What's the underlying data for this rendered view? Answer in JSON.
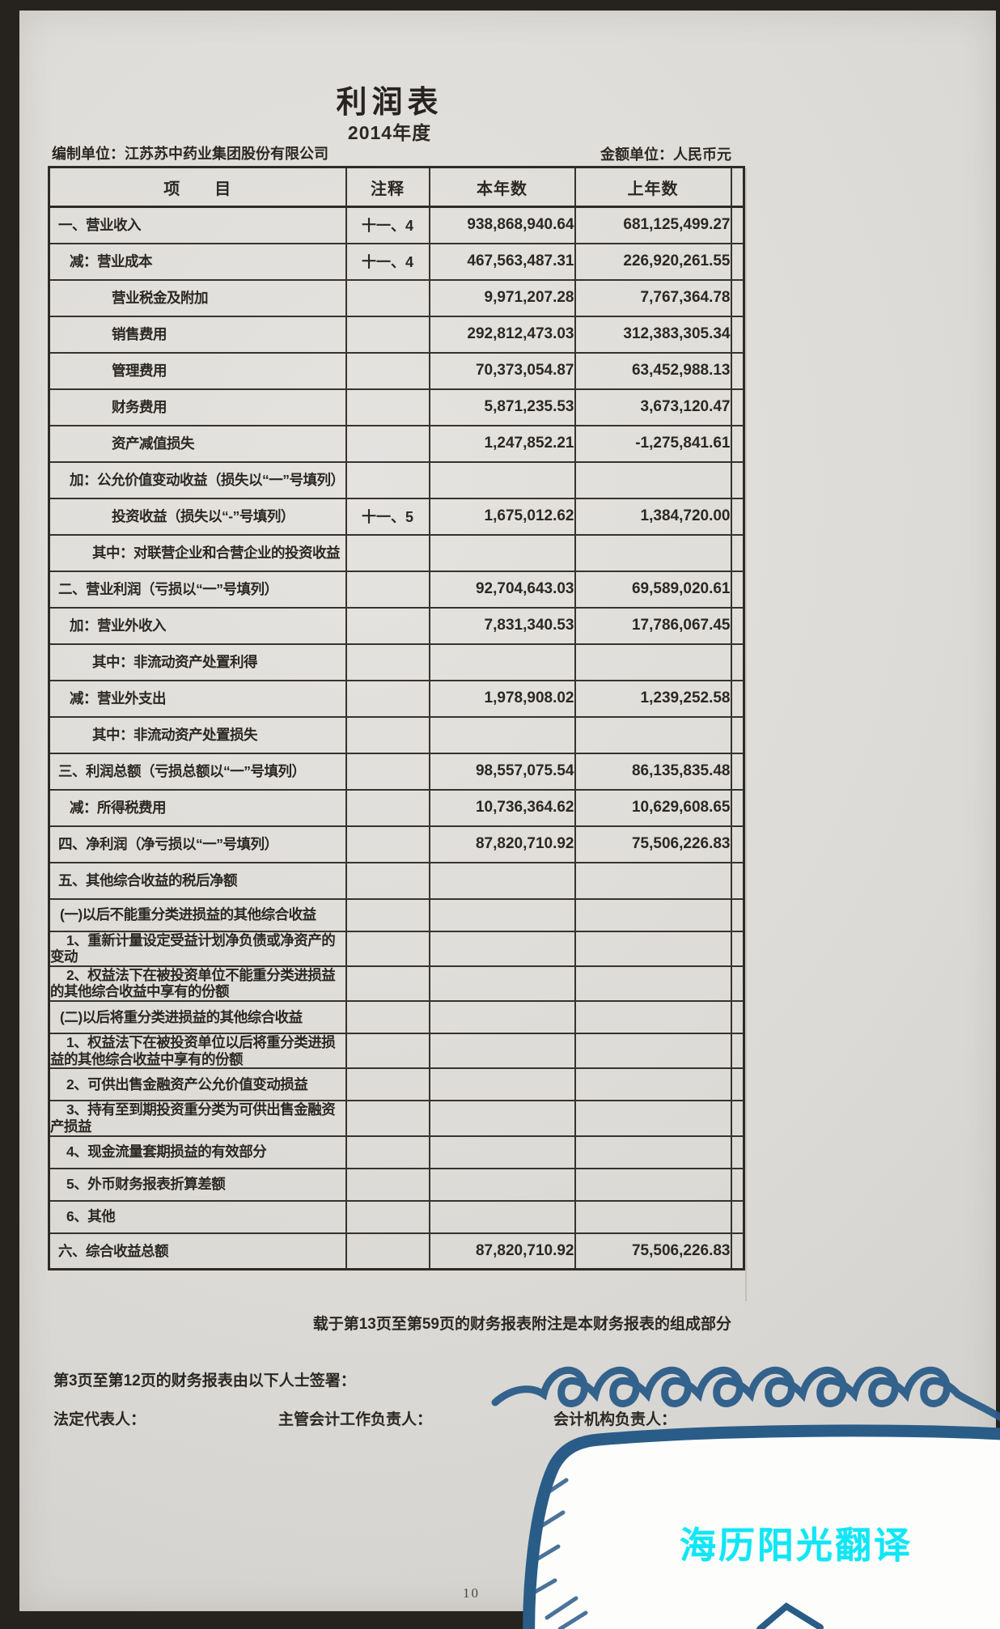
{
  "header": {
    "title": "利润表",
    "period": "2014年度",
    "prepared_by_label": "编制单位：",
    "prepared_by_value": "江苏苏中药业集团股份有限公司",
    "amount_unit_label": "金额单位：",
    "amount_unit_value": "人民币元"
  },
  "table": {
    "columns": {
      "item": "项　　目",
      "note": "注释",
      "current_year": "本年数",
      "prior_year": "上年数"
    },
    "rows": [
      {
        "item": "一、营业收入",
        "note": "十一、4",
        "current": "938,868,940.64",
        "prior": "681,125,499.27",
        "indent": 0
      },
      {
        "item": "减：营业成本",
        "note": "十一、4",
        "current": "467,563,487.31",
        "prior": "226,920,261.55",
        "indent": 1
      },
      {
        "item": "营业税金及附加",
        "note": "",
        "current": "9,971,207.28",
        "prior": "7,767,364.78",
        "indent": 3
      },
      {
        "item": "销售费用",
        "note": "",
        "current": "292,812,473.03",
        "prior": "312,383,305.34",
        "indent": 3
      },
      {
        "item": "管理费用",
        "note": "",
        "current": "70,373,054.87",
        "prior": "63,452,988.13",
        "indent": 3
      },
      {
        "item": "财务费用",
        "note": "",
        "current": "5,871,235.53",
        "prior": "3,673,120.47",
        "indent": 3
      },
      {
        "item": "资产减值损失",
        "note": "",
        "current": "1,247,852.21",
        "prior": "-1,275,841.61",
        "indent": 3
      },
      {
        "item": "加：公允价值变动收益（损失以“一”号填列）",
        "note": "",
        "current": "",
        "prior": "",
        "indent": 1
      },
      {
        "item": "投资收益（损失以“-”号填列）",
        "note": "十一、5",
        "current": "1,675,012.62",
        "prior": "1,384,720.00",
        "indent": 3
      },
      {
        "item": "其中：对联营企业和合营企业的投资收益",
        "note": "",
        "current": "",
        "prior": "",
        "indent": 2
      },
      {
        "item": "二、营业利润（亏损以“一”号填列）",
        "note": "",
        "current": "92,704,643.03",
        "prior": "69,589,020.61",
        "indent": 0
      },
      {
        "item": "加：营业外收入",
        "note": "",
        "current": "7,831,340.53",
        "prior": "17,786,067.45",
        "indent": 1
      },
      {
        "item": "其中：非流动资产处置利得",
        "note": "",
        "current": "",
        "prior": "",
        "indent": 2
      },
      {
        "item": "减：营业外支出",
        "note": "",
        "current": "1,978,908.02",
        "prior": "1,239,252.58",
        "indent": 1
      },
      {
        "item": "其中：非流动资产处置损失",
        "note": "",
        "current": "",
        "prior": "",
        "indent": 2
      },
      {
        "item": "三、利润总额（亏损总额以“一”号填列）",
        "note": "",
        "current": "98,557,075.54",
        "prior": "86,135,835.48",
        "indent": 0
      },
      {
        "item": "减：所得税费用",
        "note": "",
        "current": "10,736,364.62",
        "prior": "10,629,608.65",
        "indent": 1
      },
      {
        "item": "四、净利润（净亏损以“一”号填列）",
        "note": "",
        "current": "87,820,710.92",
        "prior": "75,506,226.83",
        "indent": 0
      },
      {
        "item": "五、其他综合收益的税后净额",
        "note": "",
        "current": "",
        "prior": "",
        "indent": 0
      },
      {
        "item": "(一)以后不能重分类进损益的其他综合收益",
        "note": "",
        "current": "",
        "prior": "",
        "indent": 4
      },
      {
        "item": "1、重新计量设定受益计划净负债或净资产的变动",
        "note": "",
        "current": "",
        "prior": "",
        "indent": 5
      },
      {
        "item": "2、权益法下在被投资单位不能重分类进损益的其他综合收益中享有的份额",
        "note": "",
        "current": "",
        "prior": "",
        "indent": 5
      },
      {
        "item": "(二)以后将重分类进损益的其他综合收益",
        "note": "",
        "current": "",
        "prior": "",
        "indent": 4
      },
      {
        "item": "1、权益法下在被投资单位以后将重分类进损益的其他综合收益中享有的份额",
        "note": "",
        "current": "",
        "prior": "",
        "indent": 5
      },
      {
        "item": "2、可供出售金融资产公允价值变动损益",
        "note": "",
        "current": "",
        "prior": "",
        "indent": 5
      },
      {
        "item": "3、持有至到期投资重分类为可供出售金融资产损益",
        "note": "",
        "current": "",
        "prior": "",
        "indent": 5
      },
      {
        "item": "4、现金流量套期损益的有效部分",
        "note": "",
        "current": "",
        "prior": "",
        "indent": 5
      },
      {
        "item": "5、外币财务报表折算差额",
        "note": "",
        "current": "",
        "prior": "",
        "indent": 5
      },
      {
        "item": "6、其他",
        "note": "",
        "current": "",
        "prior": "",
        "indent": 5
      },
      {
        "item": "六、综合收益总额",
        "note": "",
        "current": "87,820,710.92",
        "prior": "75,506,226.83",
        "indent": 0
      }
    ]
  },
  "footer": {
    "notes_reference": "载于第13页至第59页的财务报表附注是本财务报表的组成部分",
    "signing_statement": "第3页至第12页的财务报表由以下人士签署：",
    "legal_representative_label": "法定代表人：",
    "chief_accounting_officer_label": "主管会计工作负责人：",
    "accounting_department_head_label": "会计机构负责人：",
    "page_number": "10"
  },
  "watermark": {
    "text": "海历阳光翻译",
    "text_color": "#10e6f6",
    "bubble_stroke_color": "#2a5c88",
    "bubble_fill_color": "#fdfdfb"
  }
}
